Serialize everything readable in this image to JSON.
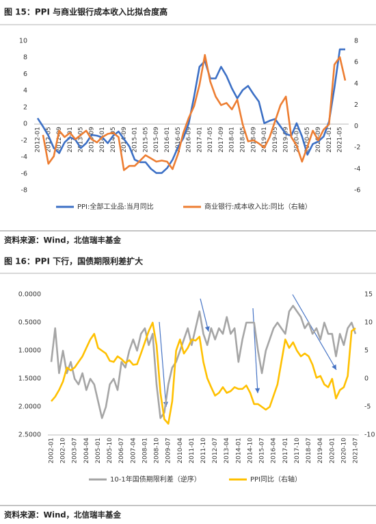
{
  "captions": [
    "图 15：PPI 与商业银行成本收入比拟合度高",
    "图 16：PPI 下行，国债期限利差扩大"
  ],
  "sources": [
    "资料来源：Wind，北信瑞丰基金",
    "资料来源：Wind，北信瑞丰基金"
  ],
  "chart_data": [
    {
      "type": "line",
      "x_axis_position": "zero",
      "grid": false,
      "legend": "bottom",
      "categories": [
        "2012-01",
        null,
        "2012-05",
        null,
        "2012-09",
        null,
        "2013-01",
        null,
        "2013-05",
        null,
        "2013-09",
        null,
        "2014-01",
        null,
        "2014-05",
        null,
        "2014-09",
        null,
        "2015-01",
        null,
        "2015-05",
        null,
        "2015-09",
        null,
        "2016-01",
        null,
        "2016-05",
        null,
        "2016-09",
        null,
        "2017-01",
        null,
        "2017-05",
        null,
        "2017-09",
        null,
        "2018-01",
        null,
        "2018-05",
        null,
        "2018-09",
        null,
        "2019-01",
        null,
        "2019-05",
        null,
        "2019-09",
        null,
        "2020-01",
        null,
        "2020-05",
        null,
        "2020-09",
        null,
        "2021-01",
        null,
        "2021-05",
        null
      ],
      "ylim": [
        -8,
        10
      ],
      "yticks": [
        -8,
        -6,
        -4,
        -2,
        0,
        2,
        4,
        6,
        8,
        10
      ],
      "y2lim": [
        -6,
        8
      ],
      "y2ticks": [
        -6,
        -4,
        -2,
        0,
        2,
        4,
        6,
        8
      ],
      "series": [
        {
          "name": "PPI:全部工业品:当月同比",
          "color": "#3b6fc5",
          "values": [
            0.7,
            -0.3,
            -1.4,
            -2.9,
            -3.5,
            -2.2,
            -1.6,
            -1.9,
            -2.9,
            -2.3,
            -1.3,
            -1.4,
            -1.6,
            -2.3,
            -1.4,
            -0.9,
            -1.8,
            -2.7,
            -4.3,
            -4.6,
            -4.6,
            -5.4,
            -5.9,
            -5.9,
            -5.3,
            -4.3,
            -2.8,
            -1.7,
            0.1,
            3.3,
            6.9,
            7.6,
            5.5,
            5.5,
            6.9,
            5.8,
            4.3,
            3.1,
            4.1,
            4.6,
            3.6,
            2.7,
            0.1,
            0.4,
            0.6,
            -0.3,
            -1.2,
            -1.4,
            0.1,
            -1.5,
            -3.7,
            -2.4,
            -2.1,
            -1.5,
            0.3,
            4.4,
            9.0,
            9.0
          ]
        },
        {
          "name": "商业银行:成本收入比:同比（右轴）",
          "color": "#ed7d31",
          "axis": "y2",
          "values": [
            null,
            -0.8,
            -3.5,
            -2.8,
            -0.4,
            -1.0,
            -0.6,
            -1.2,
            -0.8,
            -0.4,
            -1.2,
            -1.5,
            -1.0,
            -0.7,
            -0.6,
            -1.0,
            -4.1,
            -3.7,
            -3.7,
            -3.2,
            -2.7,
            -3.0,
            -3.3,
            -3.2,
            -3.3,
            -4.0,
            -2.6,
            -0.6,
            0.8,
            1.9,
            3.9,
            6.7,
            4.2,
            2.8,
            2.0,
            2.2,
            1.6,
            2.5,
            0.2,
            -1.4,
            -1.3,
            -1.6,
            -2.0,
            -1.0,
            0.5,
            2.0,
            2.8,
            -1.0,
            -1.8,
            -3.3,
            -1.9,
            -0.4,
            -1.3,
            -0.3,
            0.2,
            5.8,
            6.5,
            4.3
          ]
        }
      ]
    },
    {
      "type": "line",
      "x_axis_position": "bottom",
      "grid": false,
      "legend": "bottom",
      "y_reversed": true,
      "categories": [
        "2002-01",
        null,
        null,
        "2002-10",
        null,
        null,
        "2003-07",
        null,
        null,
        "2004-04",
        null,
        null,
        "2005-01",
        null,
        null,
        "2005-10",
        null,
        null,
        "2006-07",
        null,
        null,
        "2007-04",
        null,
        null,
        "2008-01",
        null,
        null,
        "2008-10",
        null,
        null,
        "2009-07",
        null,
        null,
        "2010-04",
        null,
        null,
        "2011-01",
        null,
        null,
        "2011-10",
        null,
        null,
        "2012-07",
        null,
        null,
        "2013-04",
        null,
        null,
        "2014-01",
        null,
        null,
        "2014-10",
        null,
        null,
        "2015-07",
        null,
        null,
        "2016-04",
        null,
        null,
        "2017-01",
        null,
        null,
        "2017-10",
        null,
        null,
        "2018-07",
        null,
        null,
        "2019-04",
        null,
        null,
        "2020-01",
        null,
        null,
        "2020-10",
        null,
        null,
        "2021-07"
      ],
      "ylim": [
        0,
        2.5
      ],
      "yticks": [
        {
          "value": 0,
          "label": "0.0000"
        },
        {
          "value": 0.5,
          "label": "0.5000"
        },
        {
          "value": 1,
          "label": "1.0000"
        },
        {
          "value": 1.5,
          "label": "1.5000"
        },
        {
          "value": 2,
          "label": "2.0000"
        },
        {
          "value": 2.5,
          "label": "2.5000"
        }
      ],
      "y2lim": [
        -10,
        15
      ],
      "y2ticks": [
        -10,
        -5,
        0,
        5,
        10,
        15
      ],
      "series": [
        {
          "name": "10-1年国债期限利差（逆序）",
          "color": "#a5a5a5",
          "values": [
            1.2,
            0.6,
            1.4,
            1.0,
            1.4,
            1.2,
            1.5,
            1.6,
            1.4,
            1.7,
            1.5,
            1.6,
            1.9,
            2.2,
            2.0,
            1.6,
            1.5,
            1.7,
            1.2,
            1.3,
            1.0,
            0.8,
            1.0,
            0.7,
            0.6,
            0.9,
            0.7,
            1.6,
            2.2,
            2.1,
            1.6,
            1.3,
            1.2,
            1.0,
            0.8,
            0.6,
            0.9,
            0.6,
            0.3,
            0.7,
            0.9,
            0.6,
            0.8,
            0.6,
            0.7,
            0.4,
            0.7,
            0.6,
            1.2,
            0.8,
            0.5,
            0.5,
            0.5,
            1.0,
            1.4,
            1.0,
            0.8,
            0.6,
            0.5,
            0.6,
            0.7,
            0.3,
            0.2,
            0.3,
            0.4,
            0.6,
            0.5,
            0.7,
            0.6,
            0.8,
            0.5,
            0.7,
            0.7,
            1.1,
            0.7,
            0.9,
            0.6,
            0.5,
            0.7
          ]
        },
        {
          "name": "PPI同比（右轴）",
          "color": "#ffc000",
          "axis": "y2",
          "values": [
            -4.0,
            -3.2,
            -2.0,
            -0.5,
            2.0,
            1.5,
            2.0,
            3.0,
            4.0,
            5.5,
            7.0,
            8.0,
            5.5,
            5.0,
            4.5,
            3.2,
            3.0,
            4.0,
            3.5,
            2.8,
            3.3,
            2.5,
            2.6,
            4.5,
            6.5,
            8.5,
            10.0,
            6.0,
            -2.5,
            -7.2,
            -8.0,
            -4.0,
            5.0,
            7.0,
            4.5,
            5.5,
            7.0,
            6.8,
            7.5,
            3.0,
            0.1,
            -1.5,
            -3.0,
            -2.5,
            -1.5,
            -2.5,
            -2.2,
            -1.5,
            -1.8,
            -1.8,
            -1.2,
            -2.5,
            -4.5,
            -4.5,
            -5.0,
            -5.5,
            -5.0,
            -3.0,
            -1.0,
            3.0,
            7.0,
            5.5,
            6.5,
            5.0,
            4.0,
            4.5,
            4.0,
            2.5,
            0.2,
            0.5,
            -1.0,
            -1.5,
            0.0,
            -3.5,
            -2.0,
            -1.5,
            0.5,
            8.5,
            9.0
          ]
        }
      ]
    }
  ]
}
